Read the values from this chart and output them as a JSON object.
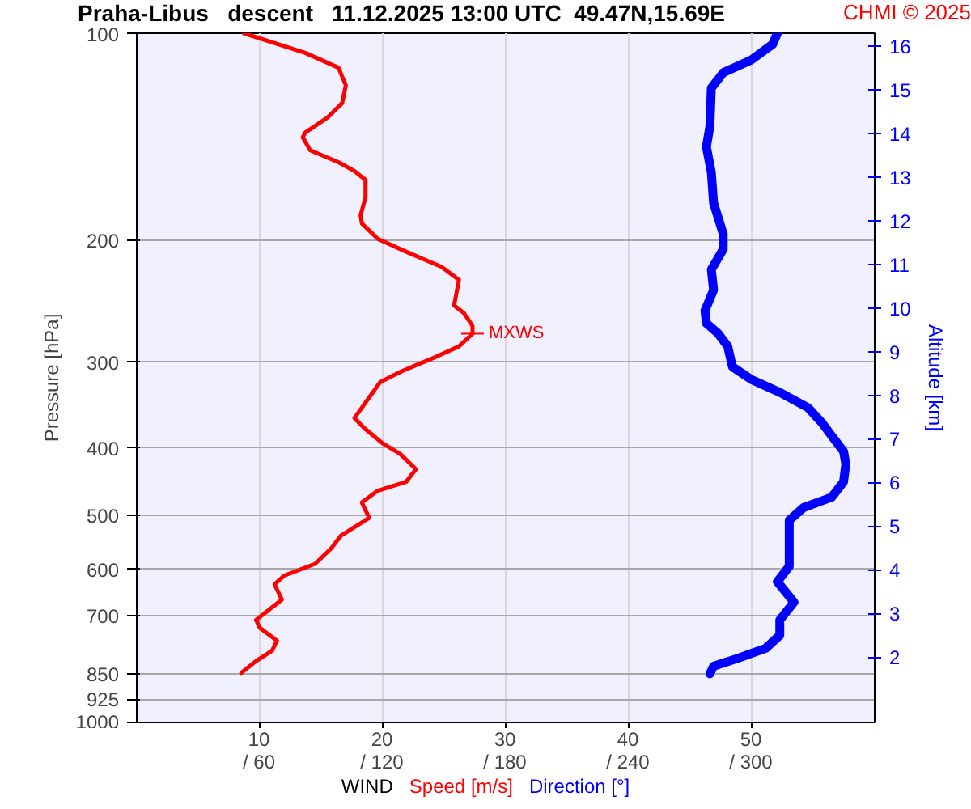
{
  "chart_data": {
    "type": "line",
    "title": "Praha-Libus   descent   11.12.2025 13:00 UTC  49.47N,15.69E",
    "xlabel": "WIND",
    "ylabel": "Pressure [hPa]",
    "y2label": "Altitude [km]",
    "annotations": [
      "CHMI © 2025",
      {
        "text": "MXWS",
        "x": 27.3,
        "y": 272.9
      }
    ],
    "xlim": [
      0,
      60
    ],
    "xticks": [
      10,
      20,
      30,
      40,
      50
    ],
    "x2lim": [
      0,
      360
    ],
    "x2ticks": [
      {
        "value": 60,
        "label": "/ 60"
      },
      {
        "value": 120,
        "label": "/ 120"
      },
      {
        "value": 180,
        "label": "/ 180"
      },
      {
        "value": 240,
        "label": "/ 240"
      },
      {
        "value": 300,
        "label": "/ 300"
      }
    ],
    "ylim": [
      1000,
      100
    ],
    "yticks": [
      100,
      200,
      300,
      400,
      500,
      600,
      700,
      850,
      925,
      1000
    ],
    "log": true,
    "y2lim": [
      0.5,
      16.3
    ],
    "y2ticks": [
      2,
      3,
      4,
      5,
      6,
      7,
      8,
      9,
      10,
      11,
      12,
      13,
      14,
      15,
      16
    ],
    "grid": true,
    "legend": "bottom",
    "series": [
      {
        "name": "Speed [m/s]",
        "color": "#ff0000",
        "x": [
          8.7,
          13.7,
          16.4,
          17.0,
          16.7,
          15.5,
          13.7,
          13.5,
          14.1,
          16.4,
          17.7,
          18.6,
          18.6,
          18.2,
          18.3,
          19.6,
          21.9,
          24.8,
          26.2,
          26.0,
          25.8,
          26.6,
          27.3,
          27.3,
          26.2,
          23.9,
          21.6,
          19.8,
          18.9,
          17.7,
          18.5,
          20.0,
          21.4,
          22.7,
          21.9,
          19.6,
          18.3,
          18.9,
          16.6,
          15.8,
          14.5,
          12.0,
          11.2,
          11.8,
          11.0,
          9.7,
          10.0,
          11.4,
          11.0,
          9.7,
          8.5
        ],
        "values": [
          100,
          106.8,
          112.2,
          119.0,
          126.3,
          132.6,
          139.4,
          141.6,
          147.9,
          153.9,
          158.5,
          163.2,
          173.1,
          183.7,
          188.8,
          198.8,
          207.5,
          218.4,
          228.0,
          237.9,
          248.3,
          254.7,
          265.9,
          272.9,
          284.7,
          297.1,
          309.0,
          320.8,
          337.7,
          361.7,
          374.2,
          393.8,
          407.6,
          429.1,
          447.7,
          461.1,
          479.6,
          504.9,
          535.8,
          559.4,
          588.8,
          612.3,
          630.4,
          663.5,
          680.8,
          710.2,
          728.8,
          760.9,
          787.0,
          814.5,
          847.4
        ]
      },
      {
        "name": "Direction [°]",
        "color": "#0000ff",
        "axis": "x2",
        "x": [
          312.5,
          310.2,
          299.9,
          286.1,
          280.3,
          279.6,
          277.9,
          280.3,
          281.4,
          286.1,
          286.1,
          280.3,
          281.4,
          277.2,
          277.9,
          283.7,
          288.3,
          290.6,
          299.9,
          313.7,
          327.5,
          334.4,
          339.0,
          344.8,
          345.9,
          344.8,
          339.0,
          325.2,
          318.3,
          318.3,
          312.5,
          320.6,
          313.7,
          313.7,
          306.8,
          293.0,
          281.4,
          279.6
        ],
        "values": [
          100,
          103.8,
          109.3,
          114.1,
          120.1,
          136.5,
          146.2,
          159.2,
          176.4,
          195.5,
          205.8,
          220.3,
          235.8,
          252.6,
          263.6,
          272.9,
          284.7,
          304.8,
          318.2,
          332.0,
          349.5,
          367.9,
          383.9,
          404.2,
          421.9,
          447.7,
          471.3,
          488.0,
          509.0,
          593.7,
          624.9,
          669.3,
          710.2,
          747.7,
          780.6,
          807.5,
          828.6,
          850.0
        ]
      }
    ]
  }
}
